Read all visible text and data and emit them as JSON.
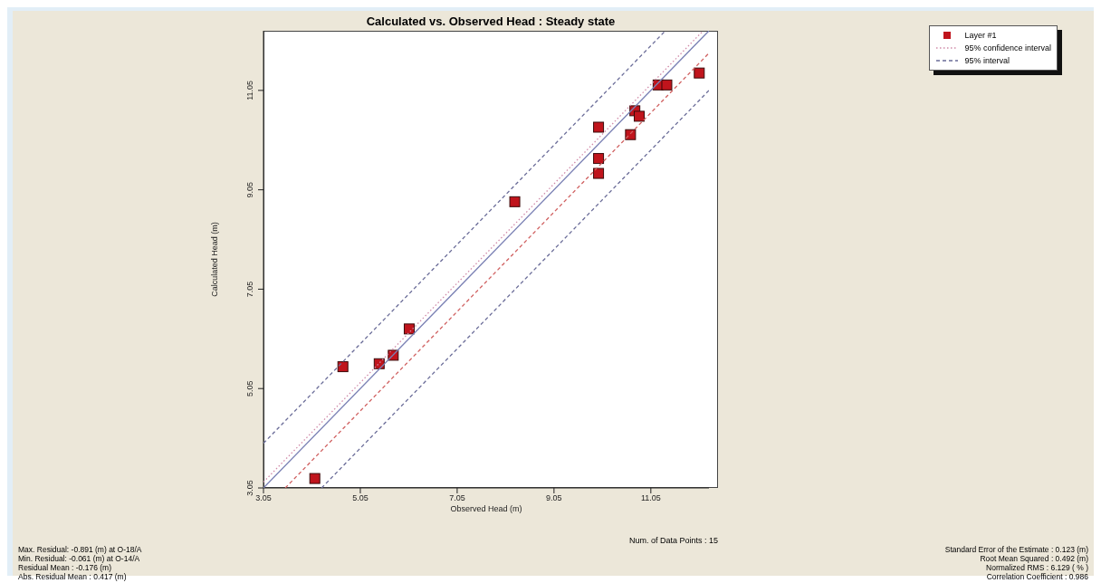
{
  "chart_data": {
    "type": "scatter",
    "title": "Calculated vs. Observed Head : Steady state",
    "xlabel": "Observed Head (m)",
    "ylabel": "Calculated Head (m)",
    "xlim": [
      3.05,
      12.25
    ],
    "ylim": [
      3.05,
      12.25
    ],
    "xticks": [
      3.05,
      5.05,
      7.05,
      9.05,
      11.05
    ],
    "yticks": [
      3.05,
      5.05,
      7.05,
      9.05,
      11.05
    ],
    "grid": false,
    "legend": "top right",
    "series": [
      {
        "name": "Layer #1",
        "marker": "square",
        "color": "#c0141c",
        "x": [
          4.11,
          4.69,
          5.44,
          5.73,
          6.06,
          8.24,
          9.97,
          9.97,
          9.97,
          10.63,
          10.72,
          10.81,
          11.2,
          11.38,
          12.05
        ],
        "values": [
          3.24,
          5.49,
          5.55,
          5.72,
          6.25,
          8.81,
          9.38,
          9.68,
          10.31,
          10.16,
          10.64,
          10.53,
          11.16,
          11.16,
          11.4
        ]
      },
      {
        "type": "line",
        "color": "#7a80b4",
        "line_style": "solid",
        "x": [
          3.05,
          12.25
        ],
        "values": [
          3.05,
          12.25
        ]
      },
      {
        "name": "95% confidence interval",
        "type": "line",
        "color": "#d08aa8",
        "line_style": "dotted",
        "x": [
          3.05,
          12.13
        ],
        "values": [
          3.17,
          12.25
        ]
      },
      {
        "type": "line",
        "color": "#d06060",
        "line_style": "dashed",
        "x": [
          3.5,
          12.25
        ],
        "values": [
          3.05,
          11.8
        ]
      },
      {
        "name": "95% interval",
        "type": "line",
        "color": "#6a6c98",
        "line_style": "dashed",
        "x": [
          3.05,
          11.35
        ],
        "values": [
          3.95,
          12.25
        ]
      },
      {
        "type": "line",
        "color": "#6a6c98",
        "line_style": "dashed",
        "x": [
          4.25,
          12.25
        ],
        "values": [
          3.05,
          11.05
        ]
      }
    ],
    "annotations": [
      "Num. of Data Points : 15",
      "Max. Residual: -0.891 (m) at O-18/A",
      "Min. Residual: -0.061 (m) at O-14/A",
      "Residual Mean : -0.176 (m)",
      "Abs. Residual Mean : 0.417 (m)",
      "Standard Error of the Estimate : 0.123 (m)",
      "Root Mean Squared : 0.492 (m)",
      "Normalized RMS : 6.129 ( % )",
      "Correlation Coefficient : 0.986"
    ]
  }
}
